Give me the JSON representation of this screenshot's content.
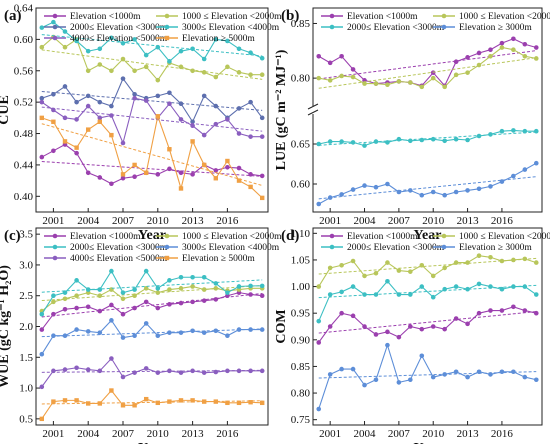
{
  "figure": {
    "panel_tags": [
      "(a)",
      "(b)",
      "(c)",
      "(d)"
    ]
  },
  "chart_data": [
    {
      "panel": "(a)",
      "type": "line",
      "xlabel": "Year",
      "ylabel": "CUE",
      "xlim": [
        1999.5,
        2019.5
      ],
      "ylim": [
        0.38,
        0.64
      ],
      "xticks": [
        2001,
        2004,
        2007,
        2010,
        2013,
        2016
      ],
      "yticks": [
        0.4,
        0.44,
        0.48,
        0.52,
        0.56,
        0.6,
        0.64
      ],
      "ytick_labels": [
        "0.40",
        "0.44",
        "0.48",
        "0.52",
        "0.56",
        "0.60",
        "0.64"
      ],
      "legend": "top",
      "trend_lines": true,
      "x": [
        2000,
        2001,
        2002,
        2003,
        2004,
        2005,
        2006,
        2007,
        2008,
        2009,
        2010,
        2011,
        2012,
        2013,
        2014,
        2015,
        2016,
        2017,
        2018,
        2019
      ],
      "series": [
        {
          "name": "Elevation <1000m",
          "color": "#9b3fae",
          "marker": "circle",
          "values": [
            0.45,
            0.458,
            0.466,
            0.455,
            0.43,
            0.424,
            0.416,
            0.423,
            0.425,
            0.43,
            0.428,
            0.435,
            0.43,
            0.428,
            0.44,
            0.433,
            0.437,
            0.436,
            0.428,
            0.426
          ]
        },
        {
          "name": "1000 ≤ Elevation <2000m",
          "color": "#b8c65a",
          "marker": "circle",
          "values": [
            0.59,
            0.603,
            0.59,
            0.6,
            0.56,
            0.568,
            0.56,
            0.575,
            0.56,
            0.565,
            0.548,
            0.57,
            0.565,
            0.56,
            0.558,
            0.552,
            0.565,
            0.558,
            0.555,
            0.555
          ]
        },
        {
          "name": "2000≤ Elevation <3000m",
          "color": "#5d6fae",
          "marker": "circle",
          "values": [
            0.525,
            0.53,
            0.54,
            0.52,
            0.528,
            0.52,
            0.515,
            0.55,
            0.53,
            0.525,
            0.528,
            0.532,
            0.518,
            0.495,
            0.528,
            0.515,
            0.5,
            0.512,
            0.52,
            0.5
          ]
        },
        {
          "name": "3000≤ Elevation <4000m",
          "color": "#3cbfc3",
          "marker": "circle",
          "values": [
            0.615,
            0.622,
            0.61,
            0.598,
            0.585,
            0.588,
            0.602,
            0.595,
            0.6,
            0.58,
            0.59,
            0.572,
            0.585,
            0.588,
            0.575,
            0.6,
            0.598,
            0.588,
            0.583,
            0.576
          ]
        },
        {
          "name": "4000≤ Elevation <5000m",
          "color": "#8a5ebf",
          "marker": "circle",
          "values": [
            0.52,
            0.51,
            0.5,
            0.498,
            0.515,
            0.5,
            0.503,
            0.468,
            0.525,
            0.522,
            0.5,
            0.518,
            0.498,
            0.49,
            0.478,
            0.492,
            0.498,
            0.48,
            0.476,
            0.476
          ]
        },
        {
          "name": "Elevation ≥ 5000m",
          "color": "#f0a044",
          "marker": "square",
          "values": [
            0.5,
            0.495,
            0.47,
            0.462,
            0.485,
            0.495,
            0.478,
            0.428,
            0.44,
            0.43,
            0.502,
            0.46,
            0.41,
            0.47,
            0.44,
            0.423,
            0.445,
            0.42,
            0.412,
            0.398
          ]
        }
      ]
    },
    {
      "panel": "(b)",
      "type": "line",
      "xlabel": "Year",
      "ylabel": "LUE (gC m⁻² MJ⁻¹)",
      "xlim": [
        1999.5,
        2019.5
      ],
      "broken_axis": true,
      "ytick_labels": [
        "0.60",
        "0.65",
        "0.80",
        "0.85"
      ],
      "ytick_values": [
        0.6,
        0.65,
        0.8,
        0.85
      ],
      "xticks": [
        2001,
        2004,
        2007,
        2010,
        2013,
        2016
      ],
      "legend": "top",
      "trend_lines": true,
      "x": [
        2000,
        2001,
        2002,
        2003,
        2004,
        2005,
        2006,
        2007,
        2008,
        2009,
        2010,
        2011,
        2012,
        2013,
        2014,
        2015,
        2016,
        2017,
        2018,
        2019
      ],
      "series": [
        {
          "name": "Elevation <1000m",
          "color": "#9b3fae",
          "marker": "circle",
          "values": [
            0.82,
            0.814,
            0.82,
            0.808,
            0.798,
            0.795,
            0.796,
            0.797,
            0.796,
            0.793,
            0.805,
            0.793,
            0.815,
            0.819,
            0.823,
            0.826,
            0.832,
            0.836,
            0.831,
            0.828
          ]
        },
        {
          "name": "1000 ≤ Elevation <2000m",
          "color": "#b8c65a",
          "marker": "circle",
          "values": [
            0.8,
            0.798,
            0.802,
            0.801,
            0.795,
            0.795,
            0.794,
            0.797,
            0.796,
            0.792,
            0.8,
            0.792,
            0.803,
            0.805,
            0.812,
            0.82,
            0.828,
            0.826,
            0.82,
            0.818
          ]
        },
        {
          "name": "2000≤ Elevation <3000m",
          "color": "#3cbfc3",
          "marker": "circle",
          "values": [
            0.65,
            0.653,
            0.653,
            0.652,
            0.648,
            0.653,
            0.652,
            0.656,
            0.654,
            0.655,
            0.656,
            0.654,
            0.656,
            0.655,
            0.66,
            0.662,
            0.666,
            0.667,
            0.666,
            0.666
          ]
        },
        {
          "name": "Elevation ≥ 3000m",
          "color": "#5d8ed8",
          "marker": "circle",
          "values": [
            0.575,
            0.583,
            0.587,
            0.593,
            0.598,
            0.596,
            0.6,
            0.59,
            0.592,
            0.586,
            0.59,
            0.586,
            0.59,
            0.592,
            0.594,
            0.597,
            0.603,
            0.61,
            0.618,
            0.626
          ]
        }
      ]
    },
    {
      "panel": "(c)",
      "type": "line",
      "xlabel": "Year",
      "ylabel": "WUE (gC kg⁻¹ H₂O)",
      "xlim": [
        1999.5,
        2019.5
      ],
      "ylim": [
        0.4,
        3.6
      ],
      "xticks": [
        2001,
        2004,
        2007,
        2010,
        2013,
        2016
      ],
      "yticks": [
        0.5,
        1.0,
        1.5,
        2.0,
        2.5,
        3.0,
        3.5
      ],
      "ytick_labels": [
        "0.5",
        "1.0",
        "1.5",
        "2.0",
        "2.5",
        "3.0",
        "3.5"
      ],
      "legend": "top",
      "trend_lines": true,
      "x": [
        2000,
        2001,
        2002,
        2003,
        2004,
        2005,
        2006,
        2007,
        2008,
        2009,
        2010,
        2011,
        2012,
        2013,
        2014,
        2015,
        2016,
        2017,
        2018,
        2019
      ],
      "series": [
        {
          "name": "Elevation <1000m",
          "color": "#9b3fae",
          "marker": "circle",
          "values": [
            1.95,
            2.2,
            2.28,
            2.3,
            2.32,
            2.25,
            2.35,
            2.2,
            2.3,
            2.4,
            2.3,
            2.36,
            2.38,
            2.4,
            2.42,
            2.44,
            2.5,
            2.55,
            2.52,
            2.5
          ]
        },
        {
          "name": "1000 ≤ Elevation <2000m",
          "color": "#b8c65a",
          "marker": "circle",
          "values": [
            2.25,
            2.4,
            2.45,
            2.5,
            2.55,
            2.5,
            2.6,
            2.45,
            2.5,
            2.62,
            2.55,
            2.6,
            2.62,
            2.65,
            2.6,
            2.62,
            2.58,
            2.6,
            2.62,
            2.62
          ]
        },
        {
          "name": "2000≤ Elevation <3000m",
          "color": "#3cbfc3",
          "marker": "circle",
          "values": [
            2.2,
            2.5,
            2.55,
            2.75,
            2.6,
            2.6,
            2.9,
            2.55,
            2.6,
            2.9,
            2.62,
            2.75,
            2.8,
            2.8,
            2.8,
            2.7,
            2.55,
            2.65,
            2.66,
            2.66
          ]
        },
        {
          "name": "3000≤ Elevation <4000m",
          "color": "#5d8ed8",
          "marker": "circle",
          "values": [
            1.55,
            1.85,
            1.85,
            1.95,
            1.92,
            1.9,
            2.1,
            1.82,
            1.85,
            2.05,
            1.85,
            1.9,
            1.9,
            1.93,
            1.9,
            1.93,
            1.85,
            1.95,
            1.95,
            1.95
          ]
        },
        {
          "name": "4000≤ Elevation <5000m",
          "color": "#8a5ebf",
          "marker": "circle",
          "values": [
            1.02,
            1.28,
            1.3,
            1.33,
            1.3,
            1.28,
            1.48,
            1.18,
            1.25,
            1.32,
            1.25,
            1.28,
            1.25,
            1.28,
            1.25,
            1.26,
            1.28,
            1.28,
            1.28,
            1.28
          ]
        },
        {
          "name": "Elevation ≥ 5000m",
          "color": "#f0a044",
          "marker": "square",
          "values": [
            0.5,
            0.78,
            0.8,
            0.8,
            0.75,
            0.75,
            0.96,
            0.72,
            0.72,
            0.82,
            0.76,
            0.78,
            0.8,
            0.8,
            0.78,
            0.78,
            0.76,
            0.76,
            0.77,
            0.76
          ]
        }
      ]
    },
    {
      "panel": "(d)",
      "type": "line",
      "xlabel": "Year",
      "ylabel": "COM",
      "xlim": [
        1999.5,
        2019.5
      ],
      "ylim": [
        0.74,
        1.11
      ],
      "xticks": [
        2001,
        2004,
        2007,
        2010,
        2013,
        2016
      ],
      "yticks": [
        0.75,
        0.8,
        0.85,
        0.9,
        0.95,
        1.0,
        1.05,
        1.1
      ],
      "ytick_labels": [
        "0.75",
        "0.80",
        "0.85",
        "0.90",
        "0.95",
        "1.00",
        "1.05",
        "1.10"
      ],
      "legend": "top",
      "trend_lines": true,
      "x": [
        2000,
        2001,
        2002,
        2003,
        2004,
        2005,
        2006,
        2007,
        2008,
        2009,
        2010,
        2011,
        2012,
        2013,
        2014,
        2015,
        2016,
        2017,
        2018,
        2019
      ],
      "series": [
        {
          "name": "Elevation <1000m",
          "color": "#9b3fae",
          "marker": "circle",
          "values": [
            0.895,
            0.925,
            0.95,
            0.945,
            0.925,
            0.91,
            0.915,
            0.905,
            0.925,
            0.92,
            0.925,
            0.92,
            0.94,
            0.93,
            0.95,
            0.955,
            0.955,
            0.962,
            0.955,
            0.95
          ]
        },
        {
          "name": "1000 ≤ Elevation <2000m",
          "color": "#b8c65a",
          "marker": "circle",
          "values": [
            1.0,
            1.035,
            1.04,
            1.048,
            1.02,
            1.025,
            1.045,
            1.03,
            1.028,
            1.04,
            1.02,
            1.035,
            1.045,
            1.045,
            1.058,
            1.055,
            1.048,
            1.05,
            1.052,
            1.045
          ]
        },
        {
          "name": "2000≤ Elevation <3000m",
          "color": "#3cbfc3",
          "marker": "circle",
          "values": [
            0.935,
            0.985,
            0.99,
            1.0,
            0.985,
            0.985,
            1.01,
            0.985,
            0.985,
            1.0,
            0.98,
            0.995,
            1.0,
            0.995,
            1.005,
            1.0,
            0.995,
            1.0,
            1.0,
            0.985
          ]
        },
        {
          "name": "Elevation ≥ 3000m",
          "color": "#5d8ed8",
          "marker": "circle",
          "values": [
            0.77,
            0.835,
            0.845,
            0.845,
            0.815,
            0.825,
            0.89,
            0.82,
            0.825,
            0.87,
            0.83,
            0.835,
            0.84,
            0.83,
            0.84,
            0.835,
            0.84,
            0.84,
            0.83,
            0.825
          ]
        }
      ]
    }
  ]
}
